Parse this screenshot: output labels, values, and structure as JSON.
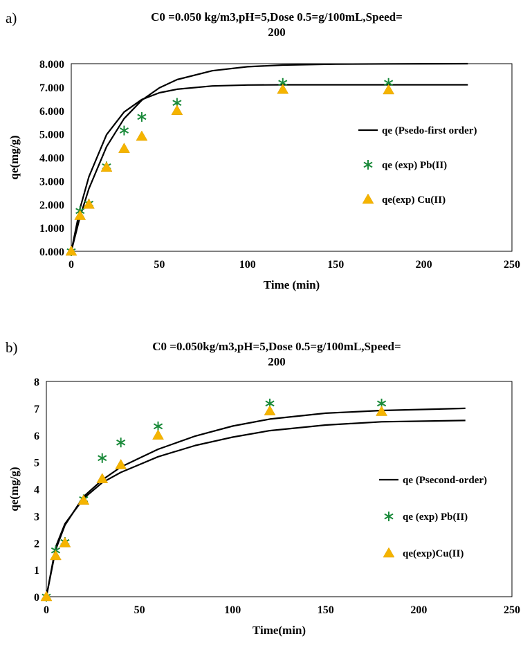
{
  "colors": {
    "pb": "#1a8a3a",
    "cu": "#f5b400",
    "curve": "#000000"
  },
  "chart_data": [
    {
      "type": "line",
      "panel_label": "a)",
      "title_lines": [
        "C0 =0.050 kg/m3,pH=5,Dose 0.5=g/100mL,Speed=",
        "200"
      ],
      "xlabel": "Time (min)",
      "ylabel": "qe(mg/g)",
      "xlim": [
        0,
        250
      ],
      "ylim": [
        0,
        8
      ],
      "x_ticks": [
        "0",
        "50",
        "100",
        "150",
        "200",
        "250"
      ],
      "y_ticks": [
        "0.000",
        "1.000",
        "2.000",
        "3.000",
        "4.000",
        "5.000",
        "6.000",
        "7.000",
        "8.000"
      ],
      "legend": [
        "qe (Psedo-first order)",
        "qe (exp) Pb(II)",
        "qe(exp) Cu(II)"
      ],
      "series": [
        {
          "name": "qe (Psedo-first order)",
          "kind": "curve",
          "x": [
            0,
            5,
            10,
            20,
            30,
            40,
            50,
            60,
            80,
            100,
            120,
            150,
            180,
            225
          ],
          "y": [
            0,
            1.83,
            3.18,
            4.97,
            5.94,
            6.47,
            6.76,
            6.91,
            7.05,
            7.09,
            7.1,
            7.1,
            7.1,
            7.1
          ]
        },
        {
          "kind": "curve",
          "x": [
            0,
            5,
            10,
            20,
            30,
            40,
            50,
            60,
            80,
            100,
            120,
            150,
            180,
            225
          ],
          "y": [
            0,
            1.47,
            2.67,
            4.46,
            5.66,
            6.44,
            6.97,
            7.32,
            7.7,
            7.87,
            7.94,
            7.98,
            7.99,
            8.0
          ]
        },
        {
          "name": "qe (exp) Pb(II)",
          "kind": "scatter",
          "marker": "asterisk",
          "x": [
            0,
            5,
            10,
            20,
            30,
            40,
            60,
            120,
            180
          ],
          "y": [
            0,
            1.72,
            2.03,
            3.62,
            5.15,
            5.73,
            6.33,
            7.18,
            7.18
          ]
        },
        {
          "name": "qe(exp) Cu(II)",
          "kind": "scatter",
          "marker": "triangle",
          "x": [
            0,
            5,
            10,
            20,
            30,
            40,
            60,
            120,
            180
          ],
          "y": [
            0,
            1.52,
            2.0,
            3.58,
            4.38,
            4.9,
            6.0,
            6.9,
            6.88
          ]
        }
      ]
    },
    {
      "type": "line",
      "panel_label": "b)",
      "title_lines": [
        "C0 =0.050kg/m3,pH=5,Dose 0.5=g/100mL,Speed=",
        "200"
      ],
      "xlabel": "Time(min)",
      "ylabel": "qe(mg/g)",
      "xlim": [
        0,
        250
      ],
      "ylim": [
        0,
        8
      ],
      "x_ticks": [
        "0",
        "50",
        "100",
        "150",
        "200",
        "250"
      ],
      "y_ticks": [
        "0",
        "1",
        "2",
        "3",
        "4",
        "5",
        "6",
        "7",
        "8"
      ],
      "legend": [
        "qe (Psecond-order)",
        "qe (exp) Pb(II)",
        "qe(exp)Cu(II)"
      ],
      "series": [
        {
          "name": "qe (Psecond-order)",
          "kind": "curve",
          "x": [
            0,
            5,
            10,
            20,
            30,
            40,
            50,
            60,
            80,
            100,
            120,
            150,
            180,
            225
          ],
          "y": [
            0,
            1.85,
            2.71,
            3.65,
            4.24,
            4.62,
            4.91,
            5.2,
            5.62,
            5.93,
            6.17,
            6.38,
            6.5,
            6.55
          ]
        },
        {
          "kind": "curve",
          "x": [
            0,
            5,
            10,
            20,
            30,
            40,
            50,
            60,
            80,
            100,
            120,
            150,
            180,
            225
          ],
          "y": [
            0,
            1.75,
            2.66,
            3.72,
            4.34,
            4.82,
            5.15,
            5.48,
            5.97,
            6.34,
            6.6,
            6.82,
            6.92,
            7.0
          ]
        },
        {
          "name": "qe (exp) Pb(II)",
          "kind": "scatter",
          "marker": "asterisk",
          "x": [
            0,
            5,
            10,
            20,
            30,
            40,
            60,
            120,
            180
          ],
          "y": [
            0,
            1.72,
            2.03,
            3.62,
            5.15,
            5.73,
            6.33,
            7.18,
            7.18
          ]
        },
        {
          "name": "qe(exp)Cu(II)",
          "kind": "scatter",
          "marker": "triangle",
          "x": [
            0,
            5,
            10,
            20,
            30,
            40,
            60,
            120,
            180
          ],
          "y": [
            0,
            1.52,
            2.0,
            3.58,
            4.38,
            4.9,
            6.0,
            6.9,
            6.88
          ]
        }
      ]
    }
  ]
}
